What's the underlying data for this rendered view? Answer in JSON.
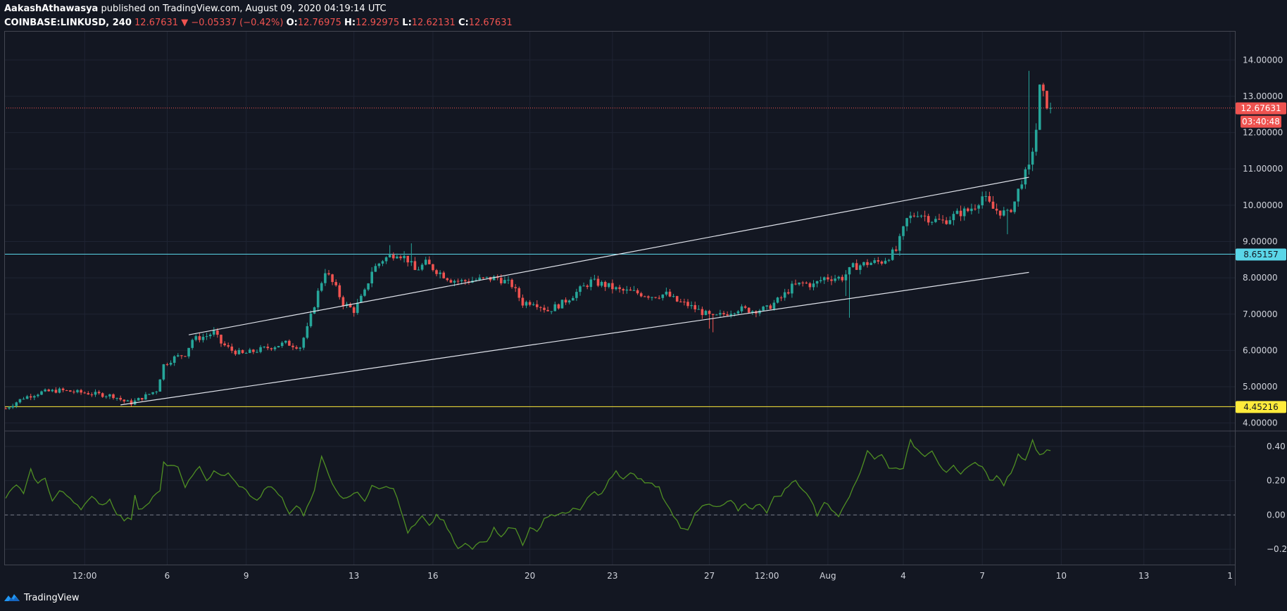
{
  "header": {
    "author": "AakashAthawasya",
    "published": "published on TradingView.com, August 09, 2020 04:19:14 UTC",
    "symbol": "COINBASE:LINKUSD, 240",
    "last": "12.67631",
    "change_arrow": "▼",
    "change": "−0.05337 (−0.42%)",
    "open_label": "O:",
    "open": "12.76975",
    "high_label": "H:",
    "high": "12.92975",
    "low_label": "L:",
    "low": "12.62131",
    "close_label": "C:",
    "close": "12.67631"
  },
  "footer": {
    "brand": "TradingView",
    "logo_icon": "tradingview-logo-icon"
  },
  "colors": {
    "background": "#131722",
    "up": "#26a69a",
    "down": "#ef5350",
    "cyan_line": "#5ad6e8",
    "yellow_line": "#ffeb3b",
    "oscillator": "#4f8f23",
    "channel": "#e0e3eb",
    "grid": "#1f2433"
  },
  "chart_data": {
    "type": "candlestick",
    "price_axis": {
      "ticks": [
        "14.00000",
        "13.00000",
        "12.00000",
        "11.00000",
        "10.00000",
        "9.00000",
        "8.00000",
        "7.00000",
        "6.00000",
        "5.00000",
        "4.00000"
      ],
      "range": [
        3.8,
        14.8
      ]
    },
    "time_axis": {
      "labels": [
        "12:00",
        "6",
        "9",
        "13",
        "16",
        "20",
        "23",
        "27",
        "12:00",
        "Aug",
        "4",
        "7",
        "10",
        "13",
        "1"
      ],
      "label_bar_index": [
        22,
        45,
        67,
        97,
        119,
        146,
        169,
        196,
        212,
        229,
        250,
        272,
        294,
        317,
        341
      ]
    },
    "price_tags": [
      {
        "name": "last-price",
        "text": "12.67631",
        "value": 12.67631,
        "kind": "last"
      },
      {
        "name": "countdown",
        "text": "03:40:48",
        "kind": "countdown"
      },
      {
        "name": "resistance",
        "text": "8.65157",
        "value": 8.65157,
        "kind": "cyan"
      },
      {
        "name": "support",
        "text": "4.45216",
        "value": 4.45216,
        "kind": "yellow"
      }
    ],
    "horizontal_lines": [
      {
        "name": "last-price-line",
        "value": 12.67631,
        "style": "dotted"
      },
      {
        "name": "resistance-line",
        "value": 8.65157,
        "style": "solid"
      },
      {
        "name": "support-line",
        "value": 4.45216,
        "style": "solid"
      }
    ],
    "channel_lines": [
      {
        "name": "upper-channel",
        "from": {
          "bar": 51,
          "price": 6.43
        },
        "to": {
          "bar": 285,
          "price": 10.77
        }
      },
      {
        "name": "lower-channel",
        "from": {
          "bar": 32,
          "price": 4.5
        },
        "to": {
          "bar": 285,
          "price": 8.15
        }
      }
    ],
    "anchors": [
      [
        0,
        4.4
      ],
      [
        5,
        4.7
      ],
      [
        10,
        4.85
      ],
      [
        15,
        4.9
      ],
      [
        20,
        4.85
      ],
      [
        25,
        4.8
      ],
      [
        30,
        4.75
      ],
      [
        33,
        4.6
      ],
      [
        35,
        4.55
      ],
      [
        38,
        4.7
      ],
      [
        42,
        4.9
      ],
      [
        44,
        5.6
      ],
      [
        47,
        5.8
      ],
      [
        50,
        5.9
      ],
      [
        52,
        6.3
      ],
      [
        56,
        6.4
      ],
      [
        58,
        6.5
      ],
      [
        60,
        6.2
      ],
      [
        63,
        6.0
      ],
      [
        66,
        5.9
      ],
      [
        70,
        6.0
      ],
      [
        74,
        6.1
      ],
      [
        78,
        6.2
      ],
      [
        82,
        6.1
      ],
      [
        84,
        6.6
      ],
      [
        87,
        7.6
      ],
      [
        89,
        8.2
      ],
      [
        92,
        7.7
      ],
      [
        94,
        7.3
      ],
      [
        97,
        7.1
      ],
      [
        100,
        7.6
      ],
      [
        102,
        8.2
      ],
      [
        105,
        8.5
      ],
      [
        109,
        8.7
      ],
      [
        112,
        8.5
      ],
      [
        114,
        8.2
      ],
      [
        117,
        8.4
      ],
      [
        120,
        8.2
      ],
      [
        124,
        7.95
      ],
      [
        127,
        7.9
      ],
      [
        132,
        7.95
      ],
      [
        137,
        8.0
      ],
      [
        141,
        7.8
      ],
      [
        144,
        7.3
      ],
      [
        147,
        7.35
      ],
      [
        151,
        7.1
      ],
      [
        155,
        7.3
      ],
      [
        159,
        7.6
      ],
      [
        163,
        7.9
      ],
      [
        167,
        7.8
      ],
      [
        171,
        7.65
      ],
      [
        175,
        7.6
      ],
      [
        180,
        7.5
      ],
      [
        184,
        7.55
      ],
      [
        187,
        7.35
      ],
      [
        190,
        7.25
      ],
      [
        193,
        7.1
      ],
      [
        197,
        6.9
      ],
      [
        200,
        7.0
      ],
      [
        204,
        7.15
      ],
      [
        208,
        7.1
      ],
      [
        212,
        7.15
      ],
      [
        216,
        7.45
      ],
      [
        219,
        7.75
      ],
      [
        222,
        7.85
      ],
      [
        225,
        7.8
      ],
      [
        228,
        8.0
      ],
      [
        230,
        8.0
      ],
      [
        233,
        8.0
      ],
      [
        236,
        8.3
      ],
      [
        240,
        8.4
      ],
      [
        244,
        8.45
      ],
      [
        248,
        8.75
      ],
      [
        251,
        9.6
      ],
      [
        254,
        9.8
      ],
      [
        258,
        9.6
      ],
      [
        261,
        9.55
      ],
      [
        264,
        9.7
      ],
      [
        266,
        9.8
      ],
      [
        268,
        9.85
      ],
      [
        270,
        10.0
      ],
      [
        272,
        10.25
      ],
      [
        275,
        9.9
      ],
      [
        279,
        9.75
      ],
      [
        281,
        10.1
      ],
      [
        283,
        10.7
      ],
      [
        285,
        11.0
      ],
      [
        287,
        12.1
      ],
      [
        288,
        13.2
      ],
      [
        290,
        12.8
      ],
      [
        291,
        12.68
      ]
    ],
    "wicks": [
      [
        235,
        6.9
      ],
      [
        234,
        7.5
      ],
      [
        285,
        13.7
      ],
      [
        279,
        9.2
      ],
      [
        197,
        6.5
      ],
      [
        196,
        6.6
      ],
      [
        107,
        8.9
      ],
      [
        113,
        8.95
      ]
    ],
    "oscillator": {
      "ticks": [
        "0.40",
        "0.20",
        "0.00",
        "−0.20"
      ],
      "range": [
        -0.29,
        0.49
      ],
      "zero_line": 0.0,
      "anchors": [
        [
          0,
          0.1
        ],
        [
          3,
          0.18
        ],
        [
          5,
          0.12
        ],
        [
          7,
          0.26
        ],
        [
          9,
          0.18
        ],
        [
          11,
          0.22
        ],
        [
          13,
          0.08
        ],
        [
          15,
          0.14
        ],
        [
          18,
          0.1
        ],
        [
          21,
          0.04
        ],
        [
          24,
          0.1
        ],
        [
          27,
          0.06
        ],
        [
          29,
          0.09
        ],
        [
          31,
          0.01
        ],
        [
          33,
          -0.03
        ],
        [
          35,
          -0.02
        ],
        [
          36,
          0.12
        ],
        [
          37,
          0.04
        ],
        [
          39,
          0.05
        ],
        [
          41,
          0.1
        ],
        [
          43,
          0.14
        ],
        [
          44,
          0.3
        ],
        [
          46,
          0.29
        ],
        [
          48,
          0.27
        ],
        [
          50,
          0.17
        ],
        [
          52,
          0.22
        ],
        [
          54,
          0.29
        ],
        [
          56,
          0.2
        ],
        [
          58,
          0.25
        ],
        [
          60,
          0.23
        ],
        [
          62,
          0.24
        ],
        [
          64,
          0.19
        ],
        [
          67,
          0.14
        ],
        [
          70,
          0.08
        ],
        [
          73,
          0.17
        ],
        [
          75,
          0.14
        ],
        [
          77,
          0.1
        ],
        [
          79,
          0.0
        ],
        [
          81,
          0.06
        ],
        [
          83,
          0.0
        ],
        [
          86,
          0.15
        ],
        [
          88,
          0.34
        ],
        [
          90,
          0.23
        ],
        [
          92,
          0.15
        ],
        [
          94,
          0.09
        ],
        [
          96,
          0.12
        ],
        [
          98,
          0.14
        ],
        [
          100,
          0.07
        ],
        [
          102,
          0.18
        ],
        [
          104,
          0.16
        ],
        [
          106,
          0.17
        ],
        [
          108,
          0.16
        ],
        [
          110,
          0.03
        ],
        [
          112,
          -0.1
        ],
        [
          114,
          -0.06
        ],
        [
          116,
          -0.01
        ],
        [
          118,
          -0.07
        ],
        [
          120,
          0.0
        ],
        [
          122,
          -0.04
        ],
        [
          124,
          -0.12
        ],
        [
          126,
          -0.2
        ],
        [
          128,
          -0.17
        ],
        [
          130,
          -0.2
        ],
        [
          132,
          -0.15
        ],
        [
          134,
          -0.15
        ],
        [
          136,
          -0.08
        ],
        [
          138,
          -0.12
        ],
        [
          140,
          -0.08
        ],
        [
          142,
          -0.08
        ],
        [
          144,
          -0.17
        ],
        [
          146,
          -0.08
        ],
        [
          148,
          -0.1
        ],
        [
          150,
          -0.02
        ],
        [
          152,
          0.0
        ],
        [
          154,
          0.0
        ],
        [
          156,
          0.01
        ],
        [
          158,
          0.04
        ],
        [
          160,
          0.02
        ],
        [
          162,
          0.1
        ],
        [
          164,
          0.13
        ],
        [
          166,
          0.12
        ],
        [
          168,
          0.2
        ],
        [
          170,
          0.25
        ],
        [
          172,
          0.21
        ],
        [
          174,
          0.24
        ],
        [
          176,
          0.22
        ],
        [
          178,
          0.19
        ],
        [
          180,
          0.18
        ],
        [
          182,
          0.16
        ],
        [
          184,
          0.06
        ],
        [
          186,
          0.0
        ],
        [
          188,
          -0.07
        ],
        [
          190,
          -0.08
        ],
        [
          192,
          0.0
        ],
        [
          194,
          0.05
        ],
        [
          196,
          0.06
        ],
        [
          198,
          0.04
        ],
        [
          200,
          0.06
        ],
        [
          202,
          0.08
        ],
        [
          204,
          0.03
        ],
        [
          206,
          0.07
        ],
        [
          208,
          0.03
        ],
        [
          210,
          0.07
        ],
        [
          212,
          0.02
        ],
        [
          214,
          0.1
        ],
        [
          216,
          0.12
        ],
        [
          218,
          0.17
        ],
        [
          220,
          0.2
        ],
        [
          222,
          0.15
        ],
        [
          224,
          0.1
        ],
        [
          226,
          0.0
        ],
        [
          228,
          0.08
        ],
        [
          230,
          0.03
        ],
        [
          232,
          0.0
        ],
        [
          234,
          0.08
        ],
        [
          236,
          0.15
        ],
        [
          238,
          0.25
        ],
        [
          240,
          0.38
        ],
        [
          242,
          0.33
        ],
        [
          244,
          0.35
        ],
        [
          246,
          0.28
        ],
        [
          248,
          0.27
        ],
        [
          250,
          0.28
        ],
        [
          252,
          0.43
        ],
        [
          254,
          0.38
        ],
        [
          256,
          0.35
        ],
        [
          258,
          0.38
        ],
        [
          260,
          0.3
        ],
        [
          262,
          0.24
        ],
        [
          264,
          0.28
        ],
        [
          266,
          0.23
        ],
        [
          268,
          0.29
        ],
        [
          270,
          0.3
        ],
        [
          272,
          0.29
        ],
        [
          274,
          0.2
        ],
        [
          276,
          0.22
        ],
        [
          278,
          0.18
        ],
        [
          280,
          0.25
        ],
        [
          282,
          0.35
        ],
        [
          284,
          0.33
        ],
        [
          286,
          0.43
        ],
        [
          288,
          0.35
        ],
        [
          290,
          0.38
        ],
        [
          291,
          0.38
        ]
      ]
    }
  }
}
